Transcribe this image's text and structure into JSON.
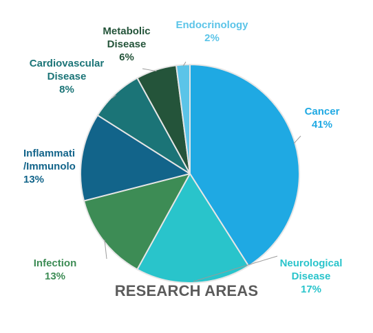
{
  "chart_data": {
    "type": "pie",
    "title": "RESEARCH AREAS",
    "slices": [
      {
        "label_lines": [
          "Cancer"
        ],
        "percent_label": "41%",
        "value": 41,
        "color": "#1fa9e3",
        "label_color": "#1fa9e3"
      },
      {
        "label_lines": [
          "Neurological",
          "Disease"
        ],
        "percent_label": "17%",
        "value": 17,
        "color": "#29c4cb",
        "label_color": "#29c4cb"
      },
      {
        "label_lines": [
          "Infection"
        ],
        "percent_label": "13%",
        "value": 13,
        "color": "#3d8c55",
        "label_color": "#3d8c55"
      },
      {
        "label_lines": [
          "Inflammati",
          "/Immunolo"
        ],
        "percent_label": "13%",
        "value": 13,
        "color": "#12648a",
        "label_color": "#12648a"
      },
      {
        "label_lines": [
          "Cardiovascular",
          "Disease"
        ],
        "percent_label": "8%",
        "value": 8,
        "color": "#1b7477",
        "label_color": "#1b7477"
      },
      {
        "label_lines": [
          "Metabolic",
          "Disease"
        ],
        "percent_label": "6%",
        "value": 6,
        "color": "#24543a",
        "label_color": "#24543a"
      },
      {
        "label_lines": [
          "Endocrinology"
        ],
        "percent_label": "2%",
        "value": 2,
        "color": "#5bc4e8",
        "label_color": "#5bc4e8"
      }
    ]
  }
}
